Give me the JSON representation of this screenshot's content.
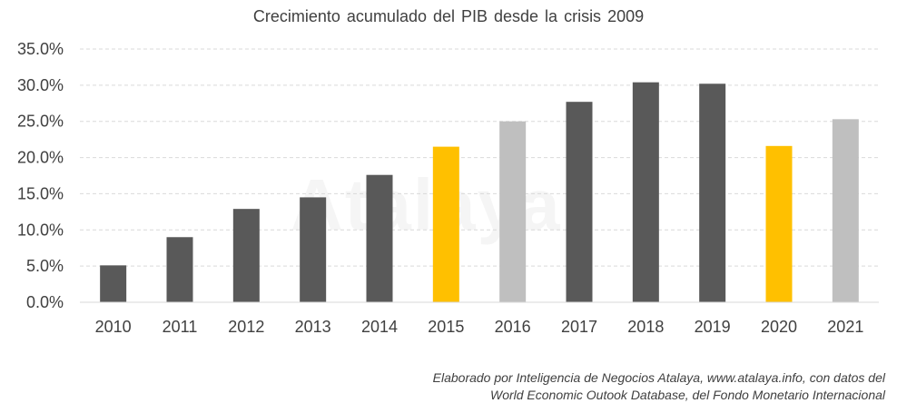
{
  "chart_data": {
    "type": "bar",
    "title": "Crecimiento  acumulado  del PIB desde la crisis 2009",
    "xlabel": "",
    "ylabel": "",
    "categories": [
      "2010",
      "2011",
      "2012",
      "2013",
      "2014",
      "2015",
      "2016",
      "2017",
      "2018",
      "2019",
      "2020",
      "2021"
    ],
    "values": [
      5.1,
      9.0,
      12.9,
      14.5,
      17.6,
      21.5,
      25.0,
      27.7,
      30.4,
      30.2,
      21.6,
      25.3
    ],
    "bar_colors": [
      "#595959",
      "#595959",
      "#595959",
      "#595959",
      "#595959",
      "#FFC000",
      "#BFBFBF",
      "#595959",
      "#595959",
      "#595959",
      "#FFC000",
      "#BFBFBF"
    ],
    "ylim": [
      0,
      35
    ],
    "yticks": [
      0,
      5,
      10,
      15,
      20,
      25,
      30,
      35
    ],
    "ytick_labels": [
      "0.0%",
      "5.0%",
      "10.0%",
      "15.0%",
      "20.0%",
      "25.0%",
      "30.0%",
      "35.0%"
    ],
    "grid": true,
    "legend": "none"
  },
  "watermark": "Atalaya",
  "credit": {
    "line1": "Elaborado por Inteligencia de  Negocios Atalaya, www.atalaya.info,   con datos del",
    "line2": "World Economic Outook Database, del Fondo Monetario Internacional"
  }
}
